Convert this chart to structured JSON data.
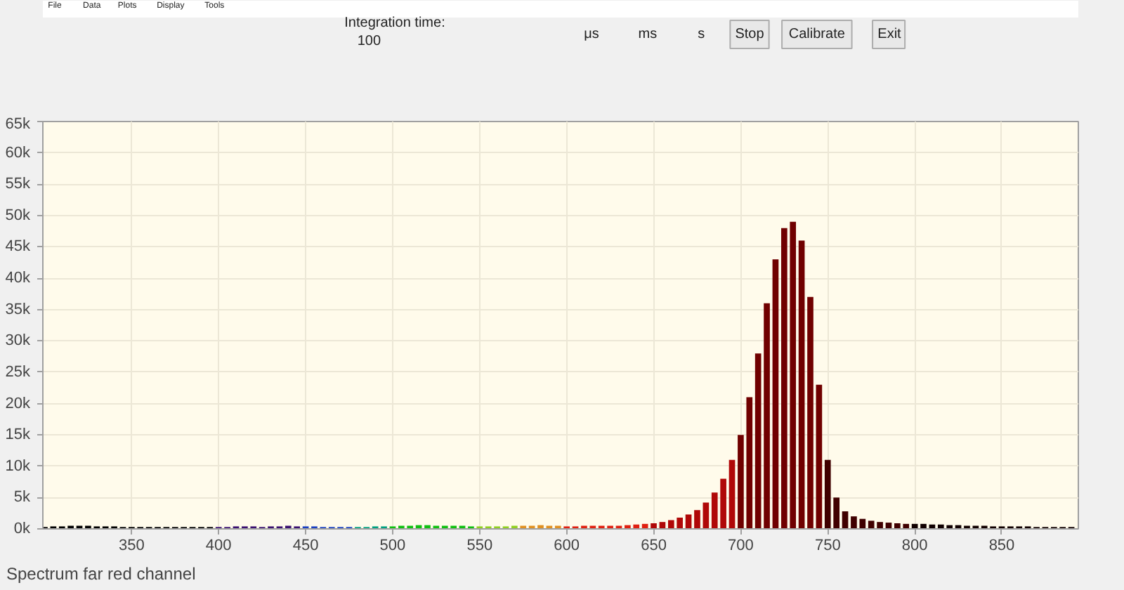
{
  "chart_data": {
    "type": "bar",
    "xlabel": "Spectrum far red channel",
    "annotations": [
      "File",
      "Data",
      "Plots",
      "Display",
      "Tools",
      "Integration time:",
      "100",
      "μs",
      "ms",
      "s",
      "Stop",
      "Calibrate",
      "Exit"
    ],
    "xlim": [
      299,
      894
    ],
    "xticks": [
      350,
      400,
      450,
      500,
      550,
      600,
      650,
      700,
      750,
      800,
      850
    ],
    "ylim": [
      0,
      65000
    ],
    "yticks": [
      {
        "value": 0,
        "label": "0k"
      },
      {
        "value": 5000,
        "label": "5k"
      },
      {
        "value": 10000,
        "label": "10k"
      },
      {
        "value": 15000,
        "label": "15k"
      },
      {
        "value": 20000,
        "label": "20k"
      },
      {
        "value": 25000,
        "label": "25k"
      },
      {
        "value": 30000,
        "label": "30k"
      },
      {
        "value": 35000,
        "label": "35k"
      },
      {
        "value": 40000,
        "label": "40k"
      },
      {
        "value": 45000,
        "label": "45k"
      },
      {
        "value": 50000,
        "label": "50k"
      },
      {
        "value": 55000,
        "label": "55k"
      },
      {
        "value": 60000,
        "label": "60k"
      },
      {
        "value": 65000,
        "label": "65k"
      }
    ],
    "grid": true,
    "series": [
      {
        "color": "#000000",
        "x": [
          300,
          305,
          310,
          315,
          320,
          325,
          330,
          335,
          340,
          345,
          350,
          355,
          360,
          365,
          370,
          375,
          380,
          385,
          390,
          395
        ],
        "values": [
          300,
          400,
          400,
          500,
          500,
          500,
          400,
          400,
          400,
          300,
          300,
          300,
          300,
          300,
          300,
          300,
          300,
          300,
          300,
          300
        ]
      },
      {
        "color": "#3a1070",
        "x": [
          400,
          405,
          410,
          415,
          420,
          425,
          430,
          435,
          440,
          445
        ],
        "values": [
          300,
          300,
          400,
          400,
          400,
          300,
          400,
          400,
          500,
          400
        ]
      },
      {
        "color": "#1a40c0",
        "x": [
          450,
          455,
          460,
          465,
          470,
          475
        ],
        "values": [
          400,
          400,
          300,
          300,
          300,
          300
        ]
      },
      {
        "color": "#00a080",
        "x": [
          480,
          485,
          490,
          495
        ],
        "values": [
          300,
          300,
          400,
          400
        ]
      },
      {
        "color": "#10c010",
        "x": [
          500,
          505,
          510,
          515,
          520,
          525,
          530,
          535,
          540,
          545
        ],
        "values": [
          400,
          500,
          500,
          600,
          600,
          500,
          500,
          500,
          500,
          400
        ]
      },
      {
        "color": "#90d020",
        "x": [
          550,
          555,
          560,
          565,
          570
        ],
        "values": [
          400,
          400,
          400,
          400,
          500
        ]
      },
      {
        "color": "#e09020",
        "x": [
          575,
          580,
          585,
          590,
          595
        ],
        "values": [
          500,
          500,
          600,
          500,
          500
        ]
      },
      {
        "color": "#e02010",
        "x": [
          600,
          605,
          610,
          615,
          620,
          625,
          630,
          635,
          640,
          645
        ],
        "values": [
          400,
          400,
          500,
          500,
          500,
          500,
          500,
          600,
          700,
          800
        ]
      },
      {
        "color": "#b00808",
        "x": [
          650,
          655,
          660,
          665,
          670,
          675,
          680,
          685,
          690,
          695
        ],
        "values": [
          900,
          1100,
          1400,
          1800,
          2300,
          3000,
          4200,
          5800,
          8000,
          11000
        ]
      },
      {
        "color": "#700000",
        "x": [
          700,
          705,
          710,
          715,
          720,
          725,
          730,
          735,
          740,
          745
        ],
        "values": [
          15000,
          21000,
          28000,
          36000,
          43000,
          48000,
          49000,
          46000,
          37000,
          23000
        ]
      },
      {
        "color": "#400000",
        "x": [
          750,
          755,
          760,
          765,
          770,
          775,
          780,
          785,
          790,
          795
        ],
        "values": [
          11000,
          5000,
          2800,
          2000,
          1600,
          1300,
          1100,
          1000,
          900,
          800
        ]
      },
      {
        "color": "#100000",
        "x": [
          800,
          805,
          810,
          815,
          820,
          825,
          830,
          835,
          840,
          845,
          850,
          855,
          860,
          865,
          870,
          875,
          880,
          885,
          890
        ],
        "values": [
          800,
          800,
          700,
          700,
          600,
          600,
          500,
          500,
          500,
          400,
          400,
          400,
          400,
          400,
          300,
          300,
          300,
          300,
          300
        ]
      }
    ]
  }
}
